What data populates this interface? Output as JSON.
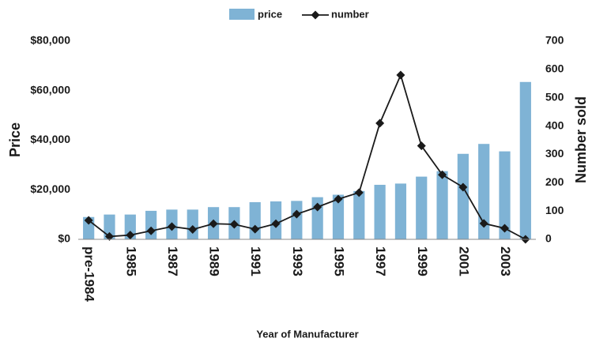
{
  "chart_data": {
    "type": "bar-line",
    "axis_labels": {
      "x": "Year of Manufacturer",
      "y": "Price",
      "y2": "Number sold"
    },
    "categories": [
      "pre-1984",
      null,
      "1985",
      null,
      "1987",
      null,
      "1989",
      null,
      "1991",
      null,
      "1993",
      null,
      "1995",
      null,
      "1997",
      null,
      "1999",
      null,
      "2001",
      null,
      "2003",
      null
    ],
    "series": [
      {
        "name": "price",
        "type": "bar",
        "color": "#7fb3d5",
        "axis": "y",
        "values": [
          9000,
          10000,
          10000,
          11500,
          12000,
          12000,
          13000,
          13000,
          15000,
          15300,
          15500,
          17000,
          18000,
          19500,
          22000,
          22500,
          25300,
          27500,
          34500,
          38500,
          35500,
          63500
        ]
      },
      {
        "name": "number",
        "type": "line",
        "color": "#1a1a1a",
        "axis": "y2",
        "values": [
          67,
          10,
          15,
          30,
          45,
          35,
          55,
          53,
          36,
          55,
          89,
          114,
          142,
          165,
          410,
          580,
          330,
          228,
          184,
          56,
          39,
          0
        ]
      }
    ],
    "ylim": [
      0,
      80000
    ],
    "yticks": [
      {
        "value": 0,
        "label": "$0"
      },
      {
        "value": 20000,
        "label": "$20,000"
      },
      {
        "value": 40000,
        "label": "$40,000"
      },
      {
        "value": 60000,
        "label": "$60,000"
      },
      {
        "value": 80000,
        "label": "$80,000"
      }
    ],
    "y2lim": [
      0,
      700
    ],
    "y2ticks": [
      0,
      100,
      200,
      300,
      400,
      500,
      600,
      700
    ],
    "legend": "top",
    "grid": false
  }
}
